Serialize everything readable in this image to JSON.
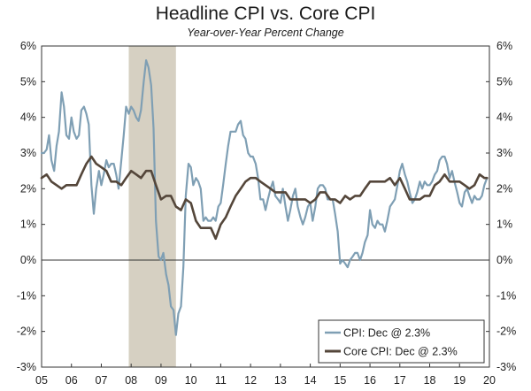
{
  "chart_data": {
    "type": "line",
    "title": "Headline CPI vs. Core CPI",
    "subtitle": "Year-over-Year Percent Change",
    "xlabel": "",
    "ylabel": "",
    "xlim": [
      2005.0,
      2020.0
    ],
    "ylim": [
      -3,
      6
    ],
    "y_ticks": [
      -3,
      -2,
      -1,
      0,
      1,
      2,
      3,
      4,
      5,
      6
    ],
    "y_tick_labels": [
      "-3%",
      "-2%",
      "-1%",
      "0%",
      "1%",
      "2%",
      "3%",
      "4%",
      "5%",
      "6%"
    ],
    "x_tick_labels": [
      "05",
      "06",
      "07",
      "08",
      "09",
      "10",
      "11",
      "12",
      "13",
      "14",
      "15",
      "16",
      "17",
      "18",
      "19",
      "20"
    ],
    "grid": false,
    "zero_line": true,
    "right_axis_mirror": true,
    "legend_position": "bottom-right",
    "shaded_periods": [
      {
        "start": 2007.92,
        "end": 2009.5,
        "color": "#d6d0c2"
      }
    ],
    "series": [
      {
        "name": "CPI: Dec @ 2.3%",
        "color": "#7f9fb4",
        "points": [
          [
            2005.0,
            3.0
          ],
          [
            2005.08,
            3.0
          ],
          [
            2005.17,
            3.1
          ],
          [
            2005.25,
            3.5
          ],
          [
            2005.33,
            2.8
          ],
          [
            2005.42,
            2.5
          ],
          [
            2005.5,
            3.2
          ],
          [
            2005.58,
            3.6
          ],
          [
            2005.67,
            4.7
          ],
          [
            2005.75,
            4.3
          ],
          [
            2005.83,
            3.5
          ],
          [
            2005.92,
            3.4
          ],
          [
            2006.0,
            4.0
          ],
          [
            2006.08,
            3.6
          ],
          [
            2006.17,
            3.4
          ],
          [
            2006.25,
            3.5
          ],
          [
            2006.33,
            4.2
          ],
          [
            2006.42,
            4.3
          ],
          [
            2006.5,
            4.1
          ],
          [
            2006.58,
            3.8
          ],
          [
            2006.67,
            2.1
          ],
          [
            2006.75,
            1.3
          ],
          [
            2006.83,
            2.0
          ],
          [
            2006.92,
            2.5
          ],
          [
            2007.0,
            2.1
          ],
          [
            2007.08,
            2.4
          ],
          [
            2007.17,
            2.8
          ],
          [
            2007.25,
            2.6
          ],
          [
            2007.33,
            2.7
          ],
          [
            2007.42,
            2.7
          ],
          [
            2007.5,
            2.4
          ],
          [
            2007.58,
            2.0
          ],
          [
            2007.67,
            2.8
          ],
          [
            2007.75,
            3.5
          ],
          [
            2007.83,
            4.3
          ],
          [
            2007.92,
            4.1
          ],
          [
            2008.0,
            4.3
          ],
          [
            2008.08,
            4.2
          ],
          [
            2008.17,
            4.0
          ],
          [
            2008.25,
            3.9
          ],
          [
            2008.33,
            4.2
          ],
          [
            2008.42,
            5.0
          ],
          [
            2008.5,
            5.6
          ],
          [
            2008.58,
            5.4
          ],
          [
            2008.67,
            4.9
          ],
          [
            2008.75,
            3.7
          ],
          [
            2008.83,
            1.1
          ],
          [
            2008.92,
            0.1
          ],
          [
            2009.0,
            0.0
          ],
          [
            2009.08,
            0.2
          ],
          [
            2009.17,
            -0.4
          ],
          [
            2009.25,
            -0.7
          ],
          [
            2009.33,
            -1.3
          ],
          [
            2009.42,
            -1.4
          ],
          [
            2009.5,
            -2.1
          ],
          [
            2009.58,
            -1.5
          ],
          [
            2009.67,
            -1.3
          ],
          [
            2009.75,
            -0.2
          ],
          [
            2009.83,
            1.8
          ],
          [
            2009.92,
            2.7
          ],
          [
            2010.0,
            2.6
          ],
          [
            2010.08,
            2.1
          ],
          [
            2010.17,
            2.3
          ],
          [
            2010.25,
            2.2
          ],
          [
            2010.33,
            2.0
          ],
          [
            2010.42,
            1.1
          ],
          [
            2010.5,
            1.2
          ],
          [
            2010.58,
            1.1
          ],
          [
            2010.67,
            1.1
          ],
          [
            2010.75,
            1.2
          ],
          [
            2010.83,
            1.1
          ],
          [
            2010.92,
            1.5
          ],
          [
            2011.0,
            1.6
          ],
          [
            2011.08,
            2.1
          ],
          [
            2011.17,
            2.7
          ],
          [
            2011.25,
            3.2
          ],
          [
            2011.33,
            3.6
          ],
          [
            2011.42,
            3.6
          ],
          [
            2011.5,
            3.6
          ],
          [
            2011.58,
            3.8
          ],
          [
            2011.67,
            3.9
          ],
          [
            2011.75,
            3.5
          ],
          [
            2011.83,
            3.4
          ],
          [
            2011.92,
            3.0
          ],
          [
            2012.0,
            2.9
          ],
          [
            2012.08,
            2.9
          ],
          [
            2012.17,
            2.7
          ],
          [
            2012.25,
            2.3
          ],
          [
            2012.33,
            1.7
          ],
          [
            2012.42,
            1.7
          ],
          [
            2012.5,
            1.4
          ],
          [
            2012.58,
            1.7
          ],
          [
            2012.67,
            2.0
          ],
          [
            2012.75,
            2.2
          ],
          [
            2012.83,
            1.8
          ],
          [
            2012.92,
            1.7
          ],
          [
            2013.0,
            1.6
          ],
          [
            2013.08,
            2.0
          ],
          [
            2013.17,
            1.5
          ],
          [
            2013.25,
            1.1
          ],
          [
            2013.33,
            1.4
          ],
          [
            2013.42,
            1.8
          ],
          [
            2013.5,
            2.0
          ],
          [
            2013.58,
            1.5
          ],
          [
            2013.67,
            1.2
          ],
          [
            2013.75,
            1.0
          ],
          [
            2013.83,
            1.2
          ],
          [
            2013.92,
            1.5
          ],
          [
            2014.0,
            1.6
          ],
          [
            2014.08,
            1.1
          ],
          [
            2014.17,
            1.5
          ],
          [
            2014.25,
            2.0
          ],
          [
            2014.33,
            2.1
          ],
          [
            2014.42,
            2.1
          ],
          [
            2014.5,
            2.0
          ],
          [
            2014.58,
            1.7
          ],
          [
            2014.67,
            1.7
          ],
          [
            2014.75,
            1.7
          ],
          [
            2014.83,
            1.3
          ],
          [
            2014.92,
            0.8
          ],
          [
            2015.0,
            -0.1
          ],
          [
            2015.08,
            0.0
          ],
          [
            2015.17,
            -0.1
          ],
          [
            2015.25,
            -0.2
          ],
          [
            2015.33,
            0.0
          ],
          [
            2015.42,
            0.1
          ],
          [
            2015.5,
            0.2
          ],
          [
            2015.58,
            0.2
          ],
          [
            2015.67,
            0.0
          ],
          [
            2015.75,
            0.2
          ],
          [
            2015.83,
            0.5
          ],
          [
            2015.92,
            0.7
          ],
          [
            2016.0,
            1.4
          ],
          [
            2016.08,
            1.0
          ],
          [
            2016.17,
            0.9
          ],
          [
            2016.25,
            1.1
          ],
          [
            2016.33,
            1.0
          ],
          [
            2016.42,
            1.0
          ],
          [
            2016.5,
            0.8
          ],
          [
            2016.58,
            1.1
          ],
          [
            2016.67,
            1.5
          ],
          [
            2016.75,
            1.6
          ],
          [
            2016.83,
            1.7
          ],
          [
            2016.92,
            2.1
          ],
          [
            2017.0,
            2.5
          ],
          [
            2017.08,
            2.7
          ],
          [
            2017.17,
            2.4
          ],
          [
            2017.25,
            2.2
          ],
          [
            2017.33,
            1.9
          ],
          [
            2017.42,
            1.6
          ],
          [
            2017.5,
            1.7
          ],
          [
            2017.58,
            1.9
          ],
          [
            2017.67,
            2.2
          ],
          [
            2017.75,
            2.0
          ],
          [
            2017.83,
            2.2
          ],
          [
            2017.92,
            2.1
          ],
          [
            2018.0,
            2.1
          ],
          [
            2018.08,
            2.2
          ],
          [
            2018.17,
            2.4
          ],
          [
            2018.25,
            2.5
          ],
          [
            2018.33,
            2.8
          ],
          [
            2018.42,
            2.9
          ],
          [
            2018.5,
            2.9
          ],
          [
            2018.58,
            2.7
          ],
          [
            2018.67,
            2.3
          ],
          [
            2018.75,
            2.5
          ],
          [
            2018.83,
            2.2
          ],
          [
            2018.92,
            1.9
          ],
          [
            2019.0,
            1.6
          ],
          [
            2019.08,
            1.5
          ],
          [
            2019.17,
            1.9
          ],
          [
            2019.25,
            2.0
          ],
          [
            2019.33,
            1.8
          ],
          [
            2019.42,
            1.6
          ],
          [
            2019.5,
            1.8
          ],
          [
            2019.58,
            1.7
          ],
          [
            2019.67,
            1.7
          ],
          [
            2019.75,
            1.8
          ],
          [
            2019.83,
            2.1
          ],
          [
            2019.92,
            2.3
          ]
        ]
      },
      {
        "name": "Core CPI: Dec @ 2.3%",
        "color": "#54463a",
        "points": [
          [
            2005.0,
            2.3
          ],
          [
            2005.17,
            2.4
          ],
          [
            2005.33,
            2.2
          ],
          [
            2005.5,
            2.1
          ],
          [
            2005.67,
            2.0
          ],
          [
            2005.83,
            2.1
          ],
          [
            2006.0,
            2.1
          ],
          [
            2006.17,
            2.1
          ],
          [
            2006.33,
            2.4
          ],
          [
            2006.5,
            2.7
          ],
          [
            2006.67,
            2.9
          ],
          [
            2006.83,
            2.7
          ],
          [
            2007.0,
            2.6
          ],
          [
            2007.17,
            2.5
          ],
          [
            2007.33,
            2.2
          ],
          [
            2007.5,
            2.2
          ],
          [
            2007.67,
            2.1
          ],
          [
            2007.83,
            2.3
          ],
          [
            2008.0,
            2.5
          ],
          [
            2008.17,
            2.4
          ],
          [
            2008.33,
            2.3
          ],
          [
            2008.5,
            2.5
          ],
          [
            2008.67,
            2.5
          ],
          [
            2008.83,
            2.1
          ],
          [
            2009.0,
            1.7
          ],
          [
            2009.17,
            1.8
          ],
          [
            2009.33,
            1.8
          ],
          [
            2009.5,
            1.5
          ],
          [
            2009.67,
            1.4
          ],
          [
            2009.83,
            1.7
          ],
          [
            2010.0,
            1.6
          ],
          [
            2010.17,
            1.1
          ],
          [
            2010.33,
            0.9
          ],
          [
            2010.5,
            0.9
          ],
          [
            2010.67,
            0.9
          ],
          [
            2010.83,
            0.6
          ],
          [
            2011.0,
            1.0
          ],
          [
            2011.17,
            1.2
          ],
          [
            2011.33,
            1.5
          ],
          [
            2011.5,
            1.8
          ],
          [
            2011.67,
            2.0
          ],
          [
            2011.83,
            2.2
          ],
          [
            2012.0,
            2.3
          ],
          [
            2012.17,
            2.3
          ],
          [
            2012.33,
            2.2
          ],
          [
            2012.5,
            2.1
          ],
          [
            2012.67,
            2.0
          ],
          [
            2012.83,
            1.9
          ],
          [
            2013.0,
            1.9
          ],
          [
            2013.17,
            1.9
          ],
          [
            2013.33,
            1.7
          ],
          [
            2013.5,
            1.7
          ],
          [
            2013.67,
            1.7
          ],
          [
            2013.83,
            1.7
          ],
          [
            2014.0,
            1.6
          ],
          [
            2014.17,
            1.7
          ],
          [
            2014.33,
            1.9
          ],
          [
            2014.5,
            1.9
          ],
          [
            2014.67,
            1.7
          ],
          [
            2014.83,
            1.7
          ],
          [
            2015.0,
            1.6
          ],
          [
            2015.17,
            1.8
          ],
          [
            2015.33,
            1.7
          ],
          [
            2015.5,
            1.8
          ],
          [
            2015.67,
            1.8
          ],
          [
            2015.83,
            2.0
          ],
          [
            2016.0,
            2.2
          ],
          [
            2016.17,
            2.2
          ],
          [
            2016.33,
            2.2
          ],
          [
            2016.5,
            2.2
          ],
          [
            2016.67,
            2.3
          ],
          [
            2016.83,
            2.1
          ],
          [
            2017.0,
            2.3
          ],
          [
            2017.17,
            2.0
          ],
          [
            2017.33,
            1.7
          ],
          [
            2017.5,
            1.7
          ],
          [
            2017.67,
            1.7
          ],
          [
            2017.83,
            1.8
          ],
          [
            2018.0,
            1.8
          ],
          [
            2018.17,
            2.1
          ],
          [
            2018.33,
            2.2
          ],
          [
            2018.5,
            2.4
          ],
          [
            2018.67,
            2.2
          ],
          [
            2018.83,
            2.2
          ],
          [
            2019.0,
            2.2
          ],
          [
            2019.17,
            2.1
          ],
          [
            2019.33,
            2.0
          ],
          [
            2019.5,
            2.1
          ],
          [
            2019.67,
            2.4
          ],
          [
            2019.83,
            2.3
          ],
          [
            2019.92,
            2.3
          ]
        ]
      }
    ]
  }
}
